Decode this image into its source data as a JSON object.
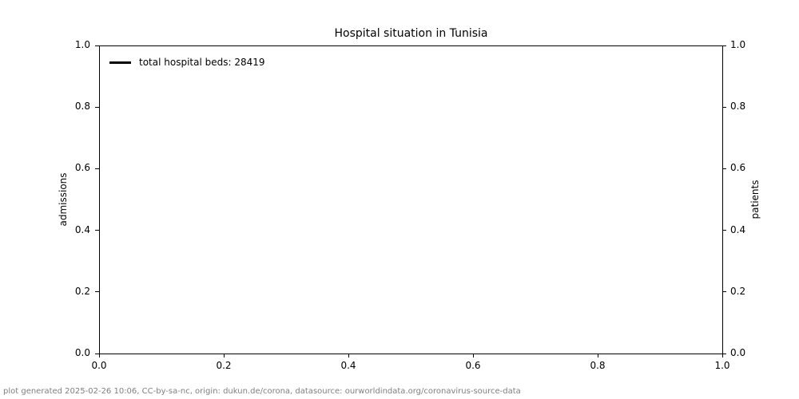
{
  "chart_data": {
    "type": "line",
    "title": "Hospital situation in Tunisia",
    "xlabel": "",
    "ylabel_left": "admissions",
    "ylabel_right": "patients",
    "xlim": [
      0.0,
      1.0
    ],
    "ylim_left": [
      0.0,
      1.0
    ],
    "ylim_right": [
      0.0,
      1.0
    ],
    "x_ticks": [
      "0.0",
      "0.2",
      "0.4",
      "0.6",
      "0.8",
      "1.0"
    ],
    "y_ticks_left": [
      "0.0",
      "0.2",
      "0.4",
      "0.6",
      "0.8",
      "1.0"
    ],
    "y_ticks_right": [
      "0.0",
      "0.2",
      "0.4",
      "0.6",
      "0.8",
      "1.0"
    ],
    "grid": false,
    "legend": {
      "position": "upper-left",
      "frame": false,
      "entries": [
        {
          "label": "total hospital beds: 28419",
          "color": "#000000",
          "style": "solid-line"
        }
      ]
    },
    "series": []
  },
  "footer": {
    "text": "plot generated 2025-02-26 10:06, CC-by-sa-nc, origin: dukun.de/corona, datasource: ourworldindata.org/coronavirus-source-data"
  },
  "colors": {
    "axis": "#000000",
    "title_text": "#000000",
    "tick_text": "#000000",
    "legend_text": "#000000",
    "footer_text": "#808080",
    "background": "#ffffff"
  }
}
